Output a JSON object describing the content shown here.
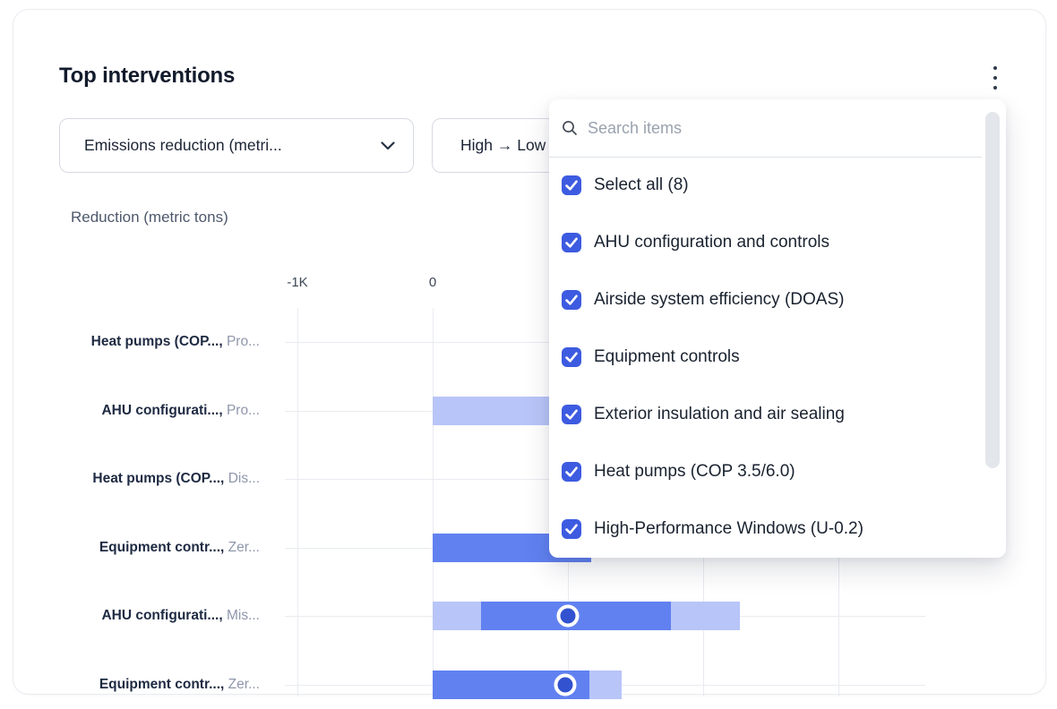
{
  "card": {
    "title": "Top interventions",
    "menu_icon": "kebab-vertical-icon"
  },
  "filters": {
    "metric_dropdown": {
      "label": "Emissions reduction (metri...",
      "icon": "chevron-down-icon"
    },
    "sort_dropdown": {
      "label": "High → Low"
    }
  },
  "dropdown_panel": {
    "search": {
      "placeholder": "Search items",
      "icon": "search-icon"
    },
    "scrollbar": true,
    "items": [
      {
        "label": "Select all (8)",
        "checked": true
      },
      {
        "label": "AHU configuration and controls",
        "checked": true
      },
      {
        "label": "Airside system efficiency (DOAS)",
        "checked": true
      },
      {
        "label": "Equipment controls",
        "checked": true
      },
      {
        "label": "Exterior insulation and air sealing",
        "checked": true
      },
      {
        "label": "Heat pumps (COP 3.5/6.0)",
        "checked": true
      },
      {
        "label": "High-Performance Windows (U-0.2)",
        "checked": true
      }
    ]
  },
  "chart_data": {
    "type": "bar",
    "orientation": "horizontal",
    "title": "Reduction (metric tons)",
    "units": "thousand metric tons",
    "x_ticks": [
      {
        "label": "-1K",
        "k": -1
      },
      {
        "label": "0",
        "k": 0
      }
    ],
    "x_gridlines_k": [
      -1,
      0,
      1,
      2,
      3
    ],
    "xlim_k": [
      -1.1,
      3.65
    ],
    "grid": true,
    "rows": [
      {
        "label_primary": "Heat pumps (COP...,",
        "label_secondary": "Pro...",
        "segments": [],
        "marker_k": null
      },
      {
        "label_primary": "AHU configurati...,",
        "label_secondary": "Pro...",
        "segments": [
          {
            "from_k": 0,
            "to_k": 2.28,
            "tone": "light"
          }
        ],
        "marker_k": null
      },
      {
        "label_primary": "Heat pumps (COP...,",
        "label_secondary": "Dis...",
        "segments": [],
        "marker_k": null
      },
      {
        "label_primary": "Equipment contr...,",
        "label_secondary": "Zer...",
        "segments": [
          {
            "from_k": 0,
            "to_k": 1.17,
            "tone": "dark"
          }
        ],
        "marker_k": null
      },
      {
        "label_primary": "AHU configurati...,",
        "label_secondary": "Mis...",
        "segments": [
          {
            "from_k": 0,
            "to_k": 0.36,
            "tone": "light"
          },
          {
            "from_k": 0.36,
            "to_k": 1.76,
            "tone": "dark"
          },
          {
            "from_k": 1.76,
            "to_k": 2.27,
            "tone": "light"
          }
        ],
        "marker_k": 1.0
      },
      {
        "label_primary": "Equipment contr...,",
        "label_secondary": "Zer...",
        "segments": [
          {
            "from_k": 0,
            "to_k": 1.16,
            "tone": "dark"
          },
          {
            "from_k": 1.16,
            "to_k": 1.4,
            "tone": "light"
          }
        ],
        "marker_k": 0.98
      }
    ]
  },
  "colors": {
    "bar_dark": "#6181f1",
    "bar_light": "#b8c5f8",
    "marker_fill": "#3252cf",
    "checkbox_blue": "#3d5be0",
    "gridline": "#e9ebf0",
    "title_text": "#121b2c",
    "label_bold": "#1e2a42",
    "label_muted": "#8e96ab"
  }
}
